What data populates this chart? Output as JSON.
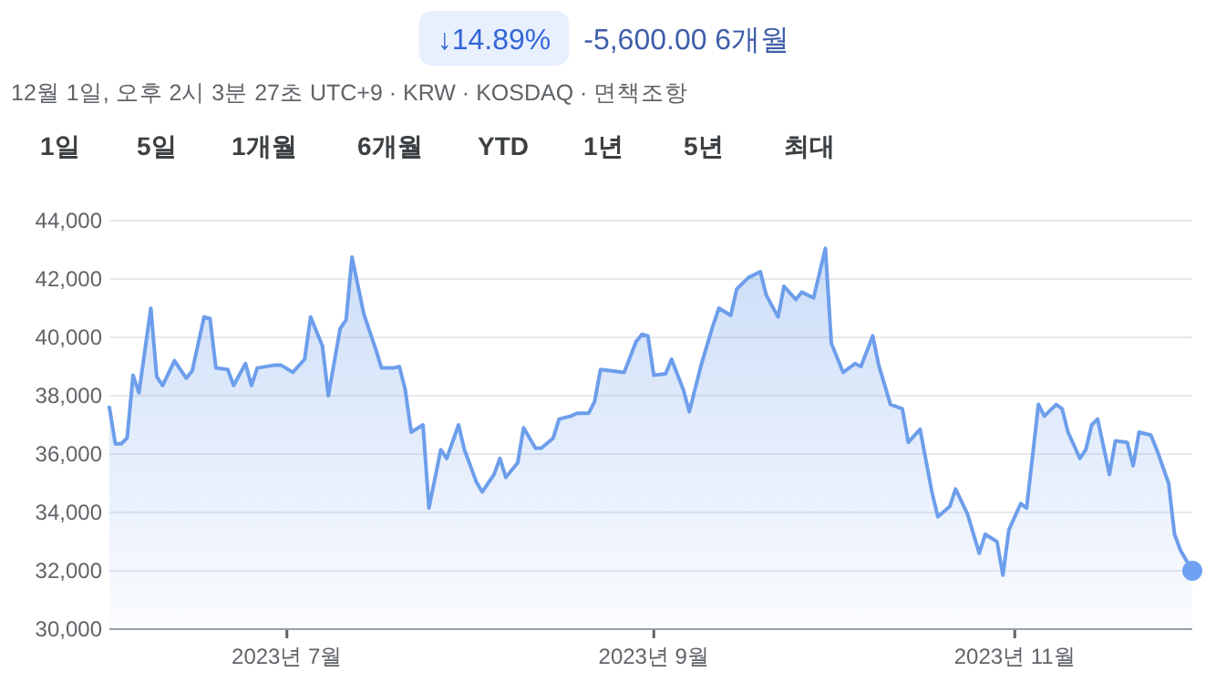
{
  "chart_data": {
    "type": "area",
    "title": "↓14.89%",
    "subtitle": "-5,600.00 6개월",
    "annotations": [
      "12월 1일, 오후 2시 3분 27초 UTC+9 · KRW · KOSDAQ · 면책조항",
      "1일",
      "5일",
      "1개월",
      "6개월",
      "YTD",
      "1년",
      "5년",
      "최대"
    ],
    "xlim": [
      "2023-06-01",
      "2023-12-01"
    ],
    "xticks": [
      {
        "value": "2023-07-01",
        "label": "2023년 7월"
      },
      {
        "value": "2023-09-01",
        "label": "2023년 9월"
      },
      {
        "value": "2023-11-01",
        "label": "2023년 11월"
      }
    ],
    "ylim": [
      30000,
      44000
    ],
    "yticks": [
      {
        "value": 30000,
        "label": "30,000"
      },
      {
        "value": 32000,
        "label": "32,000"
      },
      {
        "value": 34000,
        "label": "34,000"
      },
      {
        "value": 36000,
        "label": "36,000"
      },
      {
        "value": 38000,
        "label": "38,000"
      },
      {
        "value": 40000,
        "label": "40,000"
      },
      {
        "value": 42000,
        "label": "42,000"
      },
      {
        "value": 44000,
        "label": "44,000"
      }
    ],
    "grid": "y",
    "marker": "none",
    "series": [
      {
        "color": "#6d9eeb",
        "x": [
          "2023-06-01",
          "2023-06-02",
          "2023-06-03",
          "2023-06-04",
          "2023-06-05",
          "2023-06-06",
          "2023-06-08",
          "2023-06-09",
          "2023-06-10",
          "2023-06-12",
          "2023-06-14",
          "2023-06-15",
          "2023-06-17",
          "2023-06-18",
          "2023-06-19",
          "2023-06-21",
          "2023-06-22",
          "2023-06-24",
          "2023-06-25",
          "2023-06-26",
          "2023-06-29",
          "2023-06-30",
          "2023-07-02",
          "2023-07-04",
          "2023-07-05",
          "2023-07-07",
          "2023-07-08",
          "2023-07-10",
          "2023-07-11",
          "2023-07-12",
          "2023-07-14",
          "2023-07-16",
          "2023-07-17",
          "2023-07-19",
          "2023-07-20",
          "2023-07-21",
          "2023-07-22",
          "2023-07-24",
          "2023-07-25",
          "2023-07-27",
          "2023-07-28",
          "2023-07-30",
          "2023-07-31",
          "2023-08-02",
          "2023-08-03",
          "2023-08-05",
          "2023-08-06",
          "2023-08-07",
          "2023-08-09",
          "2023-08-10",
          "2023-08-12",
          "2023-08-13",
          "2023-08-15",
          "2023-08-16",
          "2023-08-18",
          "2023-08-19",
          "2023-08-21",
          "2023-08-22",
          "2023-08-23",
          "2023-08-27",
          "2023-08-29",
          "2023-08-30",
          "2023-08-31",
          "2023-09-01",
          "2023-09-03",
          "2023-09-04",
          "2023-09-06",
          "2023-09-07",
          "2023-09-09",
          "2023-09-11",
          "2023-09-12",
          "2023-09-14",
          "2023-09-15",
          "2023-09-17",
          "2023-09-19",
          "2023-09-20",
          "2023-09-22",
          "2023-09-23",
          "2023-09-25",
          "2023-09-26",
          "2023-09-28",
          "2023-09-30",
          "2023-10-01",
          "2023-10-03",
          "2023-10-05",
          "2023-10-06",
          "2023-10-08",
          "2023-10-09",
          "2023-10-11",
          "2023-10-13",
          "2023-10-14",
          "2023-10-16",
          "2023-10-18",
          "2023-10-19",
          "2023-10-21",
          "2023-10-22",
          "2023-10-24",
          "2023-10-26",
          "2023-10-27",
          "2023-10-29",
          "2023-10-30",
          "2023-10-31",
          "2023-11-02",
          "2023-11-03",
          "2023-11-05",
          "2023-11-06",
          "2023-11-08",
          "2023-11-09",
          "2023-11-10",
          "2023-11-12",
          "2023-11-13",
          "2023-11-14",
          "2023-11-15",
          "2023-11-17",
          "2023-11-18",
          "2023-11-20",
          "2023-11-21",
          "2023-11-22",
          "2023-11-24",
          "2023-11-25",
          "2023-11-27",
          "2023-11-28",
          "2023-11-29",
          "2023-12-01"
        ],
        "values": [
          37600,
          36350,
          36350,
          36550,
          38700,
          38100,
          41000,
          38650,
          38350,
          39200,
          38600,
          38850,
          40700,
          40650,
          38950,
          38900,
          38350,
          39100,
          38350,
          38950,
          39050,
          39050,
          38800,
          39250,
          40700,
          39700,
          38000,
          40300,
          40600,
          42750,
          40800,
          39600,
          38950,
          38950,
          39000,
          38200,
          36750,
          37000,
          34150,
          36150,
          35850,
          37000,
          36150,
          35050,
          34700,
          35300,
          35850,
          35200,
          35700,
          36900,
          36200,
          36200,
          36550,
          37200,
          37300,
          37400,
          37400,
          37800,
          38900,
          38800,
          39850,
          40100,
          40050,
          38700,
          38750,
          39250,
          38200,
          37450,
          39050,
          40400,
          41000,
          40750,
          41650,
          42050,
          42250,
          41450,
          40700,
          41750,
          41300,
          41550,
          41350,
          43050,
          39800,
          38800,
          39100,
          39000,
          40050,
          39050,
          37700,
          37550,
          36400,
          36850,
          34700,
          33850,
          34200,
          34800,
          33950,
          32600,
          33250,
          33000,
          31850,
          33400,
          34300,
          34150,
          37700,
          37300,
          37700,
          37550,
          36750,
          35850,
          36150,
          37000,
          37200,
          35300,
          36450,
          36400,
          35600,
          36750,
          36650,
          36150,
          35000,
          33250,
          32700,
          32000
        ]
      },
      {
        "type": "scatter",
        "color": "#6fa1f3",
        "marker": "circle",
        "x": [
          "2023-12-01"
        ],
        "values": [
          32000
        ]
      }
    ]
  }
}
